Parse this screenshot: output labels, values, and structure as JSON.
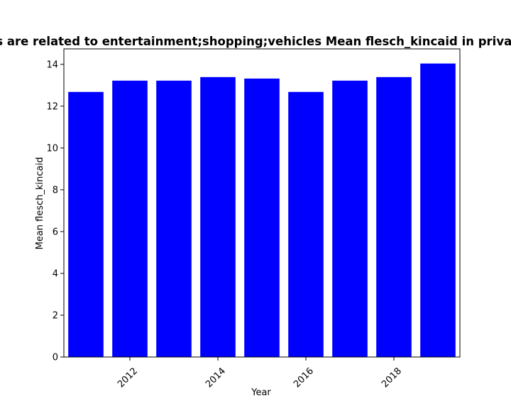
{
  "chart_data": {
    "type": "bar",
    "title": "s are related to entertainment;shopping;vehicles Mean flesch_kincaid in privacy",
    "xlabel": "Year",
    "ylabel": "Mean flesch_kincaid",
    "x": [
      2011,
      2012,
      2013,
      2014,
      2015,
      2016,
      2017,
      2018,
      2019
    ],
    "values": [
      12.68,
      13.22,
      13.22,
      13.39,
      13.32,
      12.68,
      13.22,
      13.39,
      14.04
    ],
    "xlim": [
      2010.5,
      2019.5
    ],
    "ylim": [
      0,
      14.74
    ],
    "xticks": [
      2012,
      2014,
      2016,
      2018
    ],
    "xtick_labels": [
      "2012",
      "2014",
      "2016",
      "2018"
    ],
    "yticks": [
      0,
      2,
      4,
      6,
      8,
      10,
      12,
      14
    ],
    "ytick_labels": [
      "0",
      "2",
      "4",
      "6",
      "8",
      "10",
      "12",
      "14"
    ],
    "bar_color": "#0000ff",
    "grid": false,
    "legend": "none"
  }
}
